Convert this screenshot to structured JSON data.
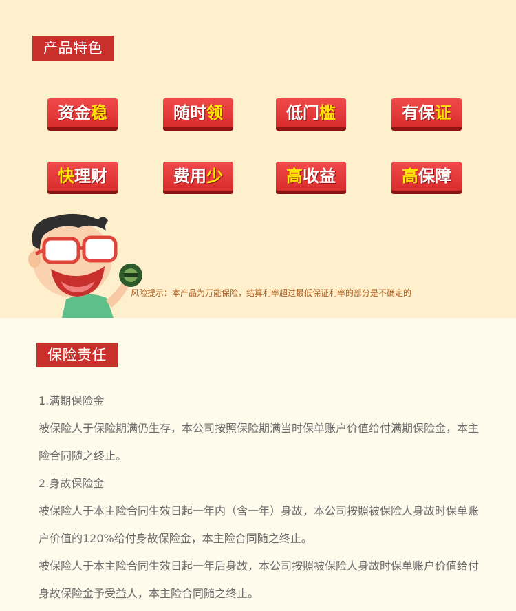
{
  "features_section": {
    "title": "产品特色",
    "items": [
      {
        "pre": "资金",
        "hl": "稳",
        "post": ""
      },
      {
        "pre": "随时",
        "hl": "领",
        "post": ""
      },
      {
        "pre": "低门",
        "hl": "槛",
        "post": ""
      },
      {
        "pre": "有保",
        "hl": "证",
        "post": ""
      },
      {
        "pre": "",
        "hl": "快",
        "post": "理财"
      },
      {
        "pre": "费用",
        "hl": "少",
        "post": ""
      },
      {
        "pre": "",
        "hl": "高",
        "post": "收益"
      },
      {
        "pre": "",
        "hl": "高",
        "post": "保障"
      }
    ],
    "risk_note": "风险提示：本产品为万能保险，结算利率超过最低保证利率的部分是不确定的"
  },
  "liability_section": {
    "title": "保险责任",
    "paragraphs": [
      "1.满期保险金",
      "被保险人于保险期满仍生存，本公司按照保险期满当时保单账户价值给付满期保险金，本主险合同随之终止。",
      "2.身故保险金",
      "被保险人于本主险合同生效日起一年内（含一年）身故，本公司按照被保险人身故时保单账户价值的120%给付身故保险金，本主险合同随之终止。",
      "被保险人于本主险合同生效日起一年后身故，本公司按照被保险人身故时保单账户价值给付身故保险金予受益人，本主险合同随之终止。"
    ]
  },
  "colors": {
    "top_background": "#fff0cd",
    "bottom_background": "#fffbec",
    "title_red": "#c9302c",
    "button_red": "#e53935",
    "highlight_yellow": "#ffe600",
    "risk_text": "#b35f1f",
    "body_text": "#6b6b6b"
  }
}
